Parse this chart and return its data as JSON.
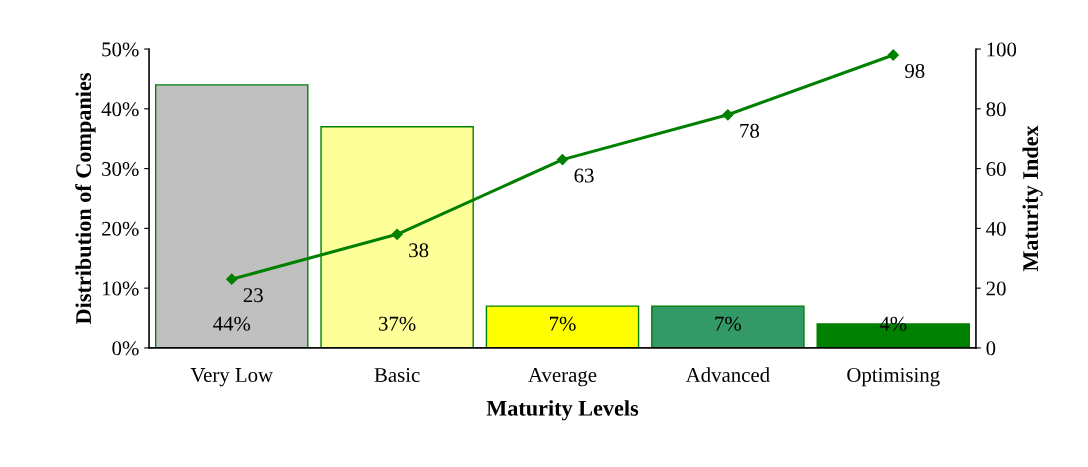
{
  "chart_data": {
    "type": "bar",
    "xlabel": "Maturity Levels",
    "ylabel": "Distribution of Companies",
    "y2label": "Maturity Index",
    "categories": [
      "Very Low",
      "Basic",
      "Average",
      "Advanced",
      "Optimising"
    ],
    "series": [
      {
        "colors": [
          "#c0c0c0",
          "#ffff99",
          "#ffff00",
          "#339966",
          "#008000"
        ],
        "values": [
          44,
          37,
          7,
          7,
          4
        ],
        "value_labels": [
          "44%",
          "37%",
          "7%",
          "7%",
          "4%"
        ]
      },
      {
        "type": "line",
        "axis": "y2",
        "color": "#008000",
        "marker": "diamond",
        "values": [
          23,
          38,
          63,
          78,
          98
        ],
        "value_labels": [
          "23",
          "38",
          "63",
          "78",
          "98"
        ]
      }
    ],
    "ylim": [
      0,
      50
    ],
    "yticks": [
      {
        "value": 0,
        "label": "0%"
      },
      {
        "value": 10,
        "label": "10%"
      },
      {
        "value": 20,
        "label": "20%"
      },
      {
        "value": 30,
        "label": "30%"
      },
      {
        "value": 40,
        "label": "40%"
      },
      {
        "value": 50,
        "label": "50%"
      }
    ],
    "y2lim": [
      0,
      100
    ],
    "y2ticks": [
      0,
      20,
      40,
      60,
      80,
      100
    ],
    "grid": false,
    "legend": false
  }
}
